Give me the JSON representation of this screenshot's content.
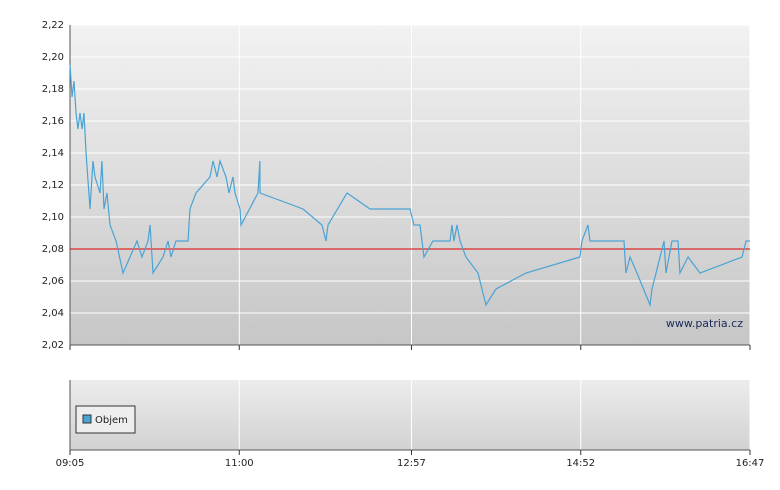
{
  "chart_data": {
    "type": "line",
    "x": [
      545,
      546.4,
      547.7,
      549.1,
      550.4,
      551.8,
      553.2,
      554.5,
      555.9,
      558.6,
      560.6,
      562.0,
      565.4,
      566.7,
      568.1,
      570.1,
      572.2,
      576.3,
      581.0,
      585.8,
      590.5,
      593.9,
      598.0,
      599.4,
      601.4,
      608.2,
      611.6,
      613.6,
      617.0,
      625.2,
      626.5,
      630.6,
      640.1,
      642.2,
      644.9,
      646.9,
      651.0,
      653.0,
      655.7,
      657.1,
      660.5,
      661.2,
      672.7,
      674.0,
      674.1,
      703.3,
      716.2,
      718.9,
      720.3,
      733.2,
      748.8,
      776.0,
      778.7,
      782.8,
      785.5,
      791.6,
      803.2,
      804.5,
      805.9,
      807.9,
      810.0,
      814.0,
      822.2,
      827.6,
      834.4,
      854.8,
      891.5,
      892.8,
      896.9,
      898.3,
      902.4,
      906.4,
      921.4,
      922.7,
      925.5,
      930.2,
      939.1,
      940.4,
      945.9,
      948.6,
      949.9,
      954.0,
      958.1,
      959.4,
      964.9,
      973.0,
      1001.6,
      1004.3,
      1007
    ],
    "series": [
      {
        "color": "#4aa3d4",
        "values": [
          2.195,
          2.175,
          2.185,
          2.165,
          2.155,
          2.165,
          2.155,
          2.165,
          2.14,
          2.105,
          2.135,
          2.125,
          2.115,
          2.135,
          2.105,
          2.115,
          2.095,
          2.085,
          2.065,
          2.075,
          2.085,
          2.075,
          2.085,
          2.095,
          2.065,
          2.075,
          2.085,
          2.075,
          2.085,
          2.085,
          2.105,
          2.115,
          2.125,
          2.135,
          2.125,
          2.135,
          2.125,
          2.115,
          2.125,
          2.115,
          2.105,
          2.095,
          2.115,
          2.135,
          2.115,
          2.105,
          2.095,
          2.085,
          2.095,
          2.115,
          2.105,
          2.105,
          2.095,
          2.095,
          2.075,
          2.085,
          2.085,
          2.095,
          2.085,
          2.095,
          2.085,
          2.075,
          2.065,
          2.045,
          2.055,
          2.065,
          2.075,
          2.085,
          2.095,
          2.085,
          2.085,
          2.085,
          2.085,
          2.065,
          2.075,
          2.065,
          2.045,
          2.055,
          2.075,
          2.085,
          2.065,
          2.085,
          2.085,
          2.065,
          2.075,
          2.065,
          2.075,
          2.085,
          2.085
        ]
      }
    ],
    "xlim": [
      545,
      1007
    ],
    "xticks": [
      {
        "value": 545,
        "label": "09:05"
      },
      {
        "value": 660,
        "label": "11:00"
      },
      {
        "value": 777,
        "label": "12:57"
      },
      {
        "value": 892,
        "label": "14:52"
      },
      {
        "value": 1007,
        "label": "16:47"
      }
    ],
    "ylim": [
      2.02,
      2.22
    ],
    "yticks": [
      {
        "value": 2.02,
        "label": "2,02"
      },
      {
        "value": 2.04,
        "label": "2,04"
      },
      {
        "value": 2.06,
        "label": "2,06"
      },
      {
        "value": 2.08,
        "label": "2,08"
      },
      {
        "value": 2.1,
        "label": "2,10"
      },
      {
        "value": 2.12,
        "label": "2,12"
      },
      {
        "value": 2.14,
        "label": "2,14"
      },
      {
        "value": 2.16,
        "label": "2,16"
      },
      {
        "value": 2.18,
        "label": "2,18"
      },
      {
        "value": 2.2,
        "label": "2,20"
      },
      {
        "value": 2.22,
        "label": "2,22"
      }
    ],
    "grid": true,
    "reference_line": {
      "value": 2.08,
      "color": "#e00000"
    },
    "watermark": "www.patria.cz",
    "volume_legend": {
      "name": "Objem",
      "color": "#4aa3d4"
    }
  }
}
